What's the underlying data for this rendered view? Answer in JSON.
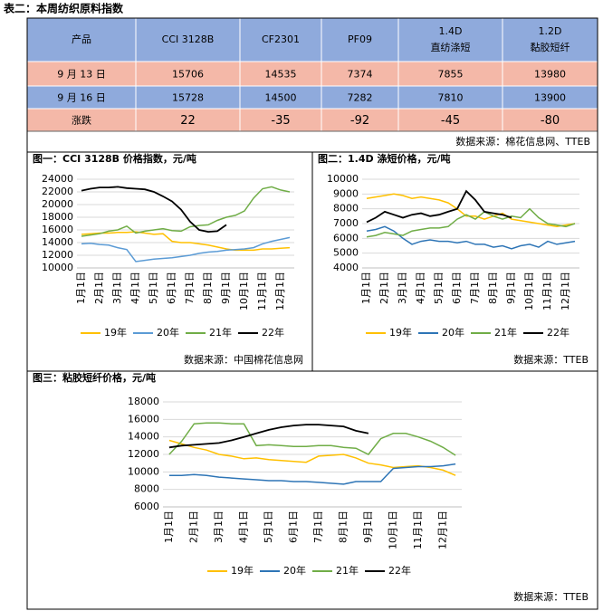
{
  "header": {
    "title": "表二：本周纺织原料指数"
  },
  "table": {
    "columns": [
      [
        "产品"
      ],
      [
        "CCI 3128B"
      ],
      [
        "CF2301"
      ],
      [
        "PF09"
      ],
      [
        "1.4D",
        "直纺涤短"
      ],
      [
        "1.2D",
        "黏胶短纤"
      ]
    ],
    "rows": [
      [
        "9 月 13 日",
        15706,
        14535,
        7374,
        7855,
        13980
      ],
      [
        "9 月 16 日",
        15728,
        14500,
        7282,
        7810,
        13900
      ],
      [
        "涨跌",
        22,
        -35,
        -92,
        -45,
        -80
      ]
    ],
    "source": "数据来源：棉花信息网、TTEB"
  },
  "charts": [
    {
      "type": "line",
      "title": "图一：CCI 3128B 价格指数，元/吨",
      "source": "数据来源：中国棉花信息网",
      "categories": [
        "1月1日",
        null,
        "2月1日",
        null,
        "3月1日",
        null,
        "4月1日",
        null,
        "5月1日",
        null,
        "6月1日",
        null,
        "7月1日",
        null,
        "8月1日",
        null,
        "9月1日",
        null,
        "10月1日",
        null,
        "11月1日",
        null,
        "12月1日",
        null
      ],
      "ylim": [
        10000,
        24000
      ],
      "yticks": [
        10000,
        12000,
        14000,
        16000,
        18000,
        20000,
        22000,
        24000
      ],
      "grid": true,
      "series": [
        {
          "name": "19年",
          "color": "#ffc000",
          "values": [
            15300,
            15400,
            15500,
            15500,
            15600,
            15600,
            15700,
            15500,
            15300,
            15400,
            14200,
            14000,
            14000,
            13800,
            13600,
            13300,
            13000,
            12800,
            12800,
            12800,
            13000,
            13000,
            13100,
            13200
          ]
        },
        {
          "name": "20年",
          "color": "#5b9bd5",
          "values": [
            13800,
            13900,
            13700,
            13600,
            13200,
            12900,
            11000,
            11200,
            11400,
            11500,
            11600,
            11800,
            12000,
            12300,
            12500,
            12600,
            12800,
            12900,
            13000,
            13200,
            13800,
            14200,
            14500,
            14800
          ]
        },
        {
          "name": "21年",
          "color": "#70ad47",
          "values": [
            15000,
            15200,
            15400,
            15800,
            16000,
            16600,
            15500,
            15800,
            16000,
            16200,
            15900,
            15800,
            16500,
            16700,
            16800,
            17500,
            18000,
            18300,
            19000,
            21000,
            22500,
            22800,
            22300,
            22000
          ]
        },
        {
          "name": "22年",
          "color": "#000000",
          "values": [
            22200,
            22500,
            22700,
            22700,
            22800,
            22600,
            22500,
            22400,
            22000,
            21300,
            20500,
            19200,
            17300,
            16000,
            15700,
            15800,
            16800,
            null,
            null,
            null,
            null,
            null,
            null,
            null
          ]
        }
      ]
    },
    {
      "type": "line",
      "title": "图二：1.4D 涤短价格，元/吨",
      "source": "数据来源：TTEB",
      "categories": [
        "1月1日",
        null,
        "2月1日",
        null,
        "3月1日",
        null,
        "4月1日",
        null,
        "5月1日",
        null,
        "6月1日",
        null,
        "7月1日",
        null,
        "8月1日",
        null,
        "9月1日",
        null,
        "10月1日",
        null,
        "11月1日",
        null,
        "12月1日",
        null
      ],
      "ylim": [
        4000,
        10000
      ],
      "yticks": [
        4000,
        5000,
        6000,
        7000,
        8000,
        9000,
        10000
      ],
      "grid": true,
      "series": [
        {
          "name": "19年",
          "color": "#ffc000",
          "values": [
            8700,
            8800,
            8900,
            9000,
            8900,
            8700,
            8800,
            8700,
            8600,
            8400,
            8000,
            7500,
            7500,
            7300,
            7500,
            7700,
            7300,
            7200,
            7100,
            7000,
            6900,
            6800,
            6900,
            7000
          ]
        },
        {
          "name": "20年",
          "color": "#2e75b6",
          "values": [
            6500,
            6600,
            6800,
            6500,
            6000,
            5600,
            5800,
            5900,
            5800,
            5800,
            5700,
            5800,
            5600,
            5600,
            5400,
            5500,
            5300,
            5500,
            5600,
            5400,
            5800,
            5600,
            5700,
            5800
          ]
        },
        {
          "name": "21年",
          "color": "#70ad47",
          "values": [
            6100,
            6200,
            6400,
            6300,
            6200,
            6500,
            6600,
            6700,
            6700,
            6800,
            7300,
            7600,
            7300,
            7800,
            7500,
            7300,
            7500,
            7400,
            8000,
            7400,
            7000,
            6900,
            6800,
            7000
          ]
        },
        {
          "name": "22年",
          "color": "#000000",
          "values": [
            7100,
            7400,
            7800,
            7600,
            7400,
            7600,
            7700,
            7500,
            7600,
            7800,
            8000,
            9200,
            8600,
            7800,
            7700,
            7600,
            7400,
            null,
            null,
            null,
            null,
            null,
            null,
            null
          ]
        }
      ]
    },
    {
      "type": "line",
      "title": "图三：粘胶短纤价格，元/吨",
      "source": "数据来源：TTEB",
      "categories": [
        "1月1日",
        null,
        "2月1日",
        null,
        "3月1日",
        null,
        "4月1日",
        null,
        "5月1日",
        null,
        "6月1日",
        null,
        "7月1日",
        null,
        "8月1日",
        null,
        "9月1日",
        null,
        "10月1日",
        null,
        "11月1日",
        null,
        "12月1日",
        null
      ],
      "ylim": [
        6000,
        18000
      ],
      "yticks": [
        6000,
        8000,
        10000,
        12000,
        14000,
        16000,
        18000
      ],
      "grid": true,
      "series": [
        {
          "name": "19年",
          "color": "#ffc000",
          "values": [
            13600,
            13200,
            12800,
            12500,
            12000,
            11800,
            11500,
            11600,
            11400,
            11300,
            11200,
            11100,
            11800,
            11900,
            12000,
            11600,
            11000,
            10800,
            10500,
            10600,
            10700,
            10500,
            10200,
            9600
          ]
        },
        {
          "name": "20年",
          "color": "#2e75b6",
          "values": [
            9600,
            9600,
            9700,
            9600,
            9400,
            9300,
            9200,
            9100,
            9000,
            9000,
            8900,
            8900,
            8800,
            8700,
            8600,
            8900,
            8900,
            8900,
            10400,
            10500,
            10600,
            10600,
            10700,
            10900
          ]
        },
        {
          "name": "21年",
          "color": "#70ad47",
          "values": [
            12000,
            13500,
            15500,
            15600,
            15600,
            15500,
            15500,
            13000,
            13100,
            13000,
            12900,
            12900,
            13000,
            13000,
            12800,
            12700,
            12000,
            13800,
            14400,
            14400,
            14000,
            13500,
            12800,
            11900
          ]
        },
        {
          "name": "22年",
          "color": "#000000",
          "values": [
            12800,
            13000,
            13100,
            13200,
            13300,
            13600,
            14000,
            14400,
            14800,
            15100,
            15300,
            15400,
            15400,
            15300,
            15200,
            14700,
            14400,
            null,
            null,
            null,
            null,
            null,
            null,
            null
          ]
        }
      ]
    }
  ]
}
